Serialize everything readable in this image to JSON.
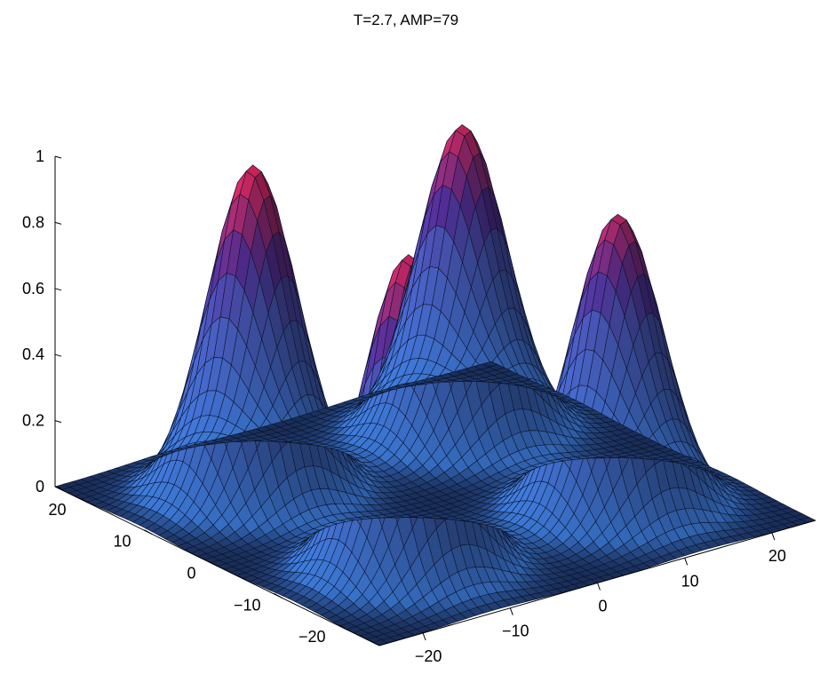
{
  "chart_data": {
    "type": "surface",
    "title": "T=2.7, AMP=79",
    "xlabel": "",
    "ylabel": "",
    "zlabel": "",
    "grid": false,
    "legend": "none",
    "xlim": [
      -25,
      25
    ],
    "ylim": [
      -25,
      25
    ],
    "zlim": [
      0,
      1
    ],
    "z_ticks": [
      {
        "value": 0,
        "label": "0"
      },
      {
        "value": 0.2,
        "label": "0.2"
      },
      {
        "value": 0.4,
        "label": "0.4"
      },
      {
        "value": 0.6,
        "label": "0.6"
      },
      {
        "value": 0.8,
        "label": "0.8"
      },
      {
        "value": 1,
        "label": "1"
      }
    ],
    "x_ticks": [
      {
        "value": -20,
        "label": "−20"
      },
      {
        "value": -10,
        "label": "−10"
      },
      {
        "value": 0,
        "label": "0"
      },
      {
        "value": 10,
        "label": "10"
      },
      {
        "value": 20,
        "label": "20"
      }
    ],
    "y_ticks": [
      {
        "value": -20,
        "label": "−20"
      },
      {
        "value": -10,
        "label": "−10"
      },
      {
        "value": 0,
        "label": "0"
      },
      {
        "value": 10,
        "label": "10"
      },
      {
        "value": 20,
        "label": "20"
      }
    ],
    "peaks": [
      {
        "x": -12,
        "y": 12,
        "height": 1.0,
        "width": 4.2
      },
      {
        "x": -12,
        "y": -12,
        "height": 0.96,
        "width": 4.2
      },
      {
        "x": 12,
        "y": 12,
        "height": 0.94,
        "width": 4.2
      },
      {
        "x": 12,
        "y": -12,
        "height": 0.9,
        "width": 4.2
      }
    ],
    "colormap": [
      "#1a2f5c",
      "#3b78d4",
      "#4a57b8",
      "#53309a",
      "#b02a6a",
      "#e8245a"
    ]
  }
}
